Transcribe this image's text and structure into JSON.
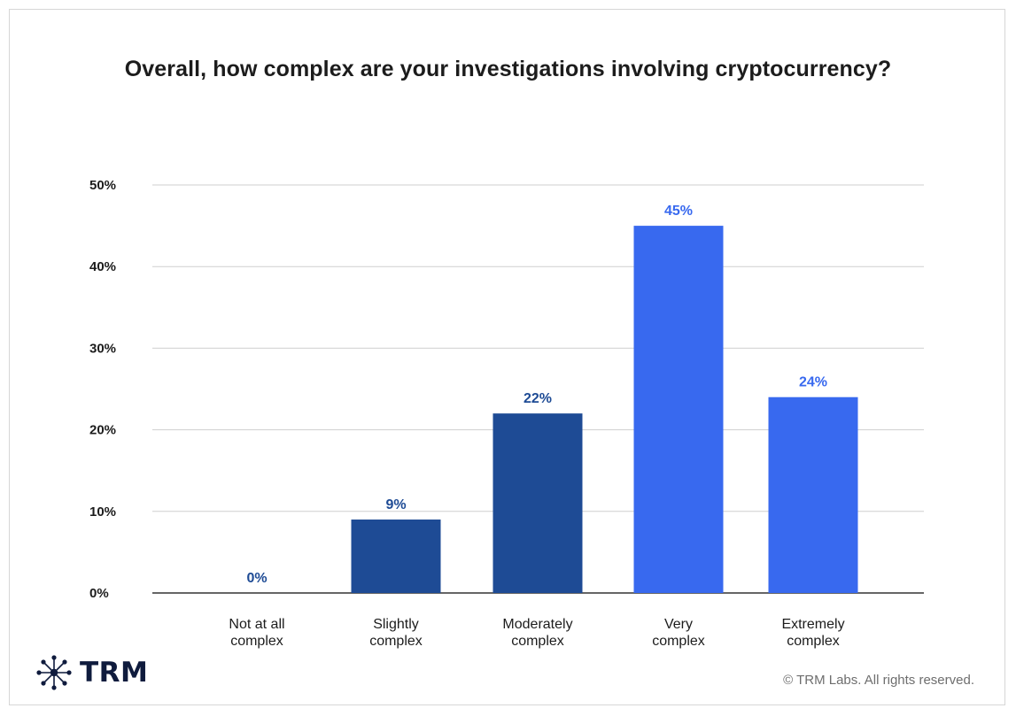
{
  "chart_data": {
    "type": "bar",
    "title": "Overall, how complex are your investigations involving cryptocurrency?",
    "categories": [
      [
        "Not at all",
        "complex"
      ],
      [
        "Slightly",
        "complex"
      ],
      [
        "Moderately",
        "complex"
      ],
      [
        "Very",
        "complex"
      ],
      [
        "Extremely",
        "complex"
      ]
    ],
    "values": [
      0,
      9,
      22,
      45,
      24
    ],
    "value_labels": [
      "0%",
      "9%",
      "22%",
      "45%",
      "24%"
    ],
    "bar_colors": [
      "#1e4b95",
      "#1e4b95",
      "#1e4b95",
      "#3869ef",
      "#3869ef"
    ],
    "y_ticks": [
      0,
      10,
      20,
      30,
      40,
      50
    ],
    "y_tick_labels": [
      "0%",
      "10%",
      "20%",
      "30%",
      "40%",
      "50%"
    ],
    "ylim": [
      0,
      50
    ],
    "xlabel": "",
    "ylabel": "",
    "grid": true,
    "legend": "none"
  },
  "footer": {
    "brand": "TRM",
    "brand_icon": "trm-network-logo-icon",
    "copyright": "© TRM Labs. All rights reserved."
  },
  "colors": {
    "dark_bar": "#1e4b95",
    "light_bar": "#3869ef",
    "grid": "#cfcfcf",
    "axis": "#333333",
    "text": "#1c1c1c"
  }
}
